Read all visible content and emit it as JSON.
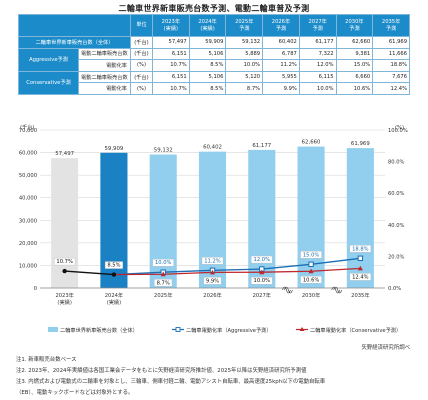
{
  "title": "二輪車世界新車販売台数予測、電動二輪車普及予測",
  "table": {
    "unit_header": "単位",
    "years": [
      {
        "y": "2023年",
        "s": "(実績)"
      },
      {
        "y": "2024年",
        "s": "(実績)"
      },
      {
        "y": "2025年",
        "s": "予測"
      },
      {
        "y": "2026年",
        "s": "予測"
      },
      {
        "y": "2027年",
        "s": "予測"
      },
      {
        "y": "2030年",
        "s": "予測"
      },
      {
        "y": "2035年",
        "s": "予測"
      }
    ],
    "total_label": "二輪車世界新車販売台数（全体）",
    "total_unit": "(千台)",
    "total": [
      "57,497",
      "59,909",
      "59,132",
      "60,402",
      "61,177",
      "62,660",
      "61,969"
    ],
    "agg_label": "Aggressive予測",
    "agg_sales_label": "電動二輪車販売台数",
    "agg_sales_unit": "(千台)",
    "agg_sales": [
      "6,151",
      "5,106",
      "5,889",
      "6,787",
      "7,322",
      "9,381",
      "11,666"
    ],
    "agg_rate_label": "電動化率",
    "agg_rate_unit": "(%)",
    "agg_rate": [
      "10.7%",
      "8.5%",
      "10.0%",
      "11.2%",
      "12.0%",
      "15.0%",
      "18.8%"
    ],
    "con_label": "Conservative予測",
    "con_sales_label": "電動二輪車販売台数",
    "con_sales_unit": "(千台)",
    "con_sales": [
      "6,151",
      "5,106",
      "5,120",
      "5,955",
      "6,115",
      "6,660",
      "7,676"
    ],
    "con_rate_label": "電動化率",
    "con_rate_unit": "(%)",
    "con_rate": [
      "10.7%",
      "8.5%",
      "8.7%",
      "9.9%",
      "10.0%",
      "10.6%",
      "12.4%"
    ]
  },
  "chart_data": {
    "type": "bar",
    "categories": [
      "2023年\n(実績)",
      "2024年\n(実績)",
      "2025年",
      "2026年",
      "2027年",
      "2030年",
      "2035年"
    ],
    "ylabel_left": "(千台)",
    "ylabel_right": "(%)",
    "ylim_left": [
      0,
      70000
    ],
    "yticks_left": [
      "0",
      "10,000",
      "20,000",
      "30,000",
      "40,000",
      "50,000",
      "60,000",
      "70,000"
    ],
    "ylim_right": [
      0,
      100
    ],
    "yticks_right": [
      "0.0%",
      "20.0%",
      "40.0%",
      "60.0%",
      "80.0%",
      "100.0%"
    ],
    "bars": {
      "name": "二輪車世界新車販売台数（全体）",
      "values": [
        57497,
        59909,
        59132,
        60402,
        61177,
        62660,
        61969
      ],
      "labels": [
        "57,497",
        "59,909",
        "59,132",
        "60,402",
        "61,177",
        "62,660",
        "61,969"
      ],
      "colors": [
        "#e3e3e3",
        "#1a82c4",
        "#92cfee",
        "#92cfee",
        "#92cfee",
        "#92cfee",
        "#92cfee"
      ]
    },
    "series": [
      {
        "name": "二輪車電動化率（Aggressive予測）",
        "values": [
          10.7,
          8.5,
          10.0,
          11.2,
          12.0,
          15.0,
          18.8
        ],
        "labels": [
          "10.7%",
          "8.5%",
          "10.0%",
          "11.2%",
          "12.0%",
          "15.0%",
          "18.8%"
        ],
        "color": "#1a6fb5"
      },
      {
        "name": "二輪車電動化率（Conservative予測）",
        "values": [
          10.7,
          8.5,
          8.7,
          9.9,
          10.0,
          10.6,
          12.4
        ],
        "labels": [
          "",
          "",
          "8.7%",
          "9.9%",
          "10.0%",
          "10.6%",
          "12.4%"
        ],
        "color": "#c0272d"
      }
    ],
    "actual_line_color": "#111111",
    "legend_position": "bottom"
  },
  "notes": [
    "注1. 新車販売台数ベース",
    "注2. 2023年、2024年実績値は各国工業会データをもとに矢野経済研究所推計値、2025年以降は矢野経済研究所予測値",
    "注3. 内燃式および電動式の二輪車を対象とし、三輪車、側車付軽二輪、電動アシスト自転車、最高速度25kph以下の電動自転車",
    "（EB）、電動キックボードなどは対象外とする。"
  ],
  "credit": "矢野経済研究所調べ"
}
